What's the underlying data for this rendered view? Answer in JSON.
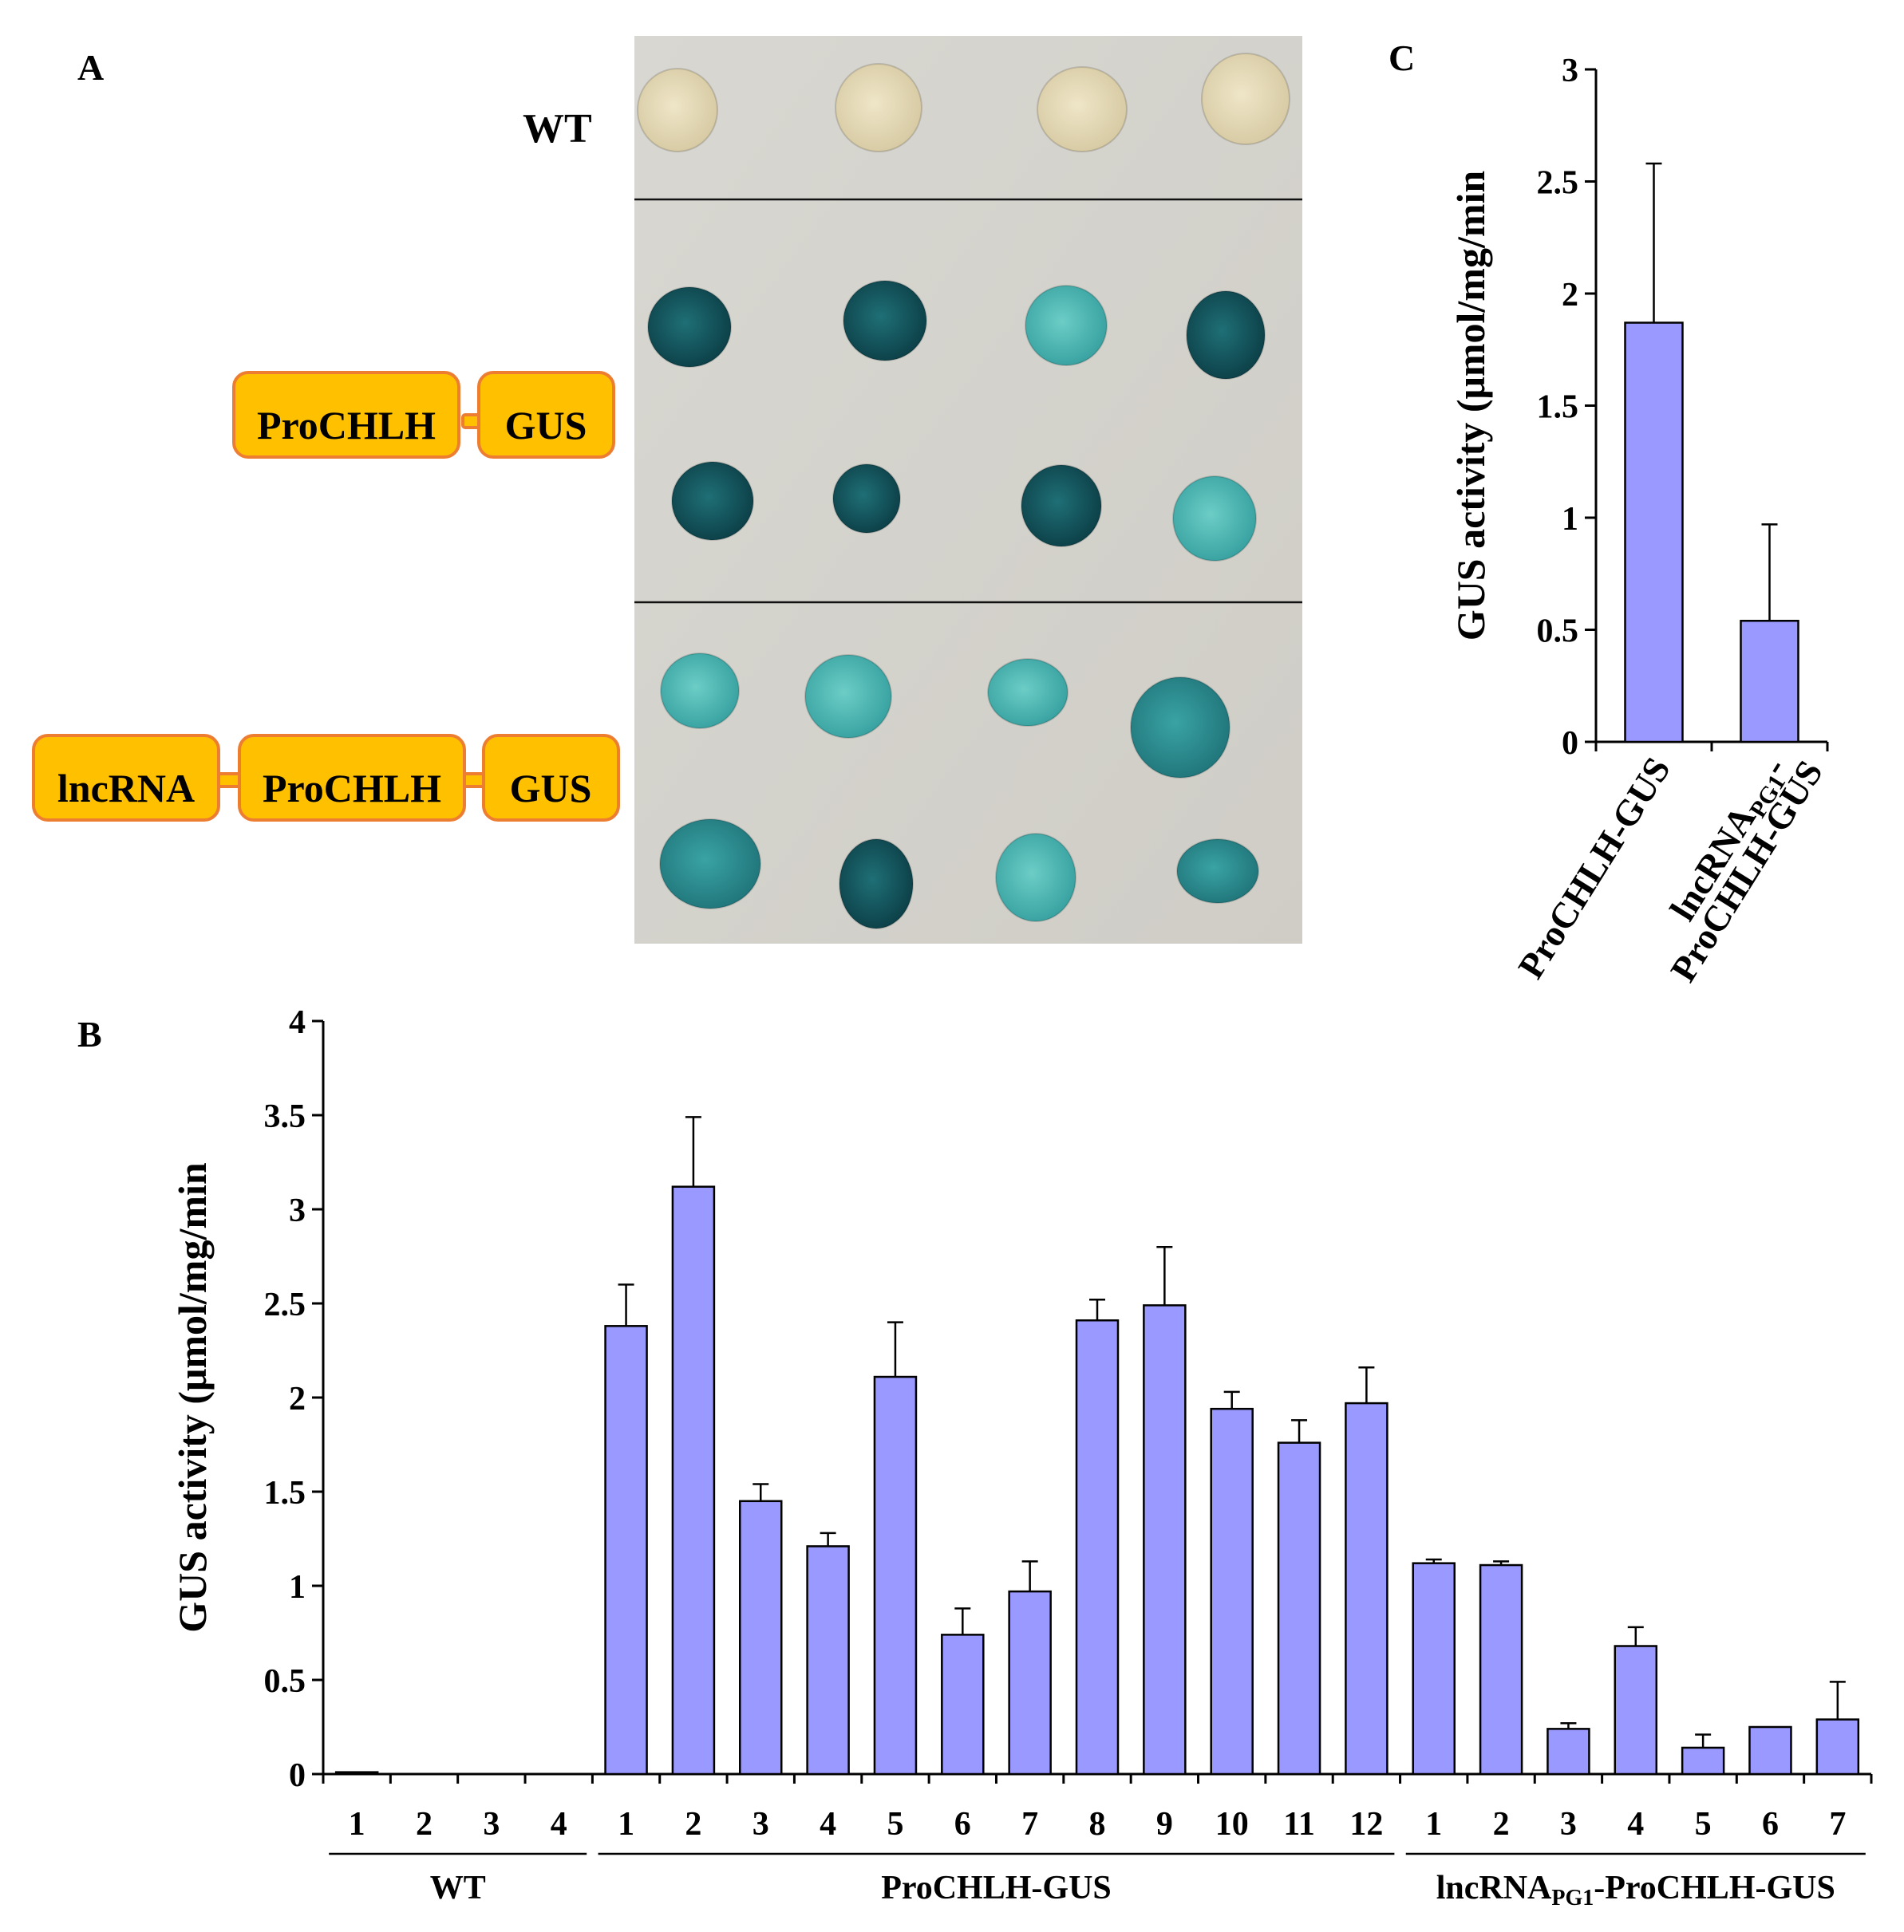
{
  "panels": {
    "a": "A",
    "b": "B",
    "c": "C"
  },
  "photo": {
    "wt_label": "WT",
    "rows": [
      "WT",
      "ProCHLH-GUS",
      "lncRNA-ProCHLH-GUS"
    ]
  },
  "constructs": {
    "c1": {
      "pro": "ProCHLH",
      "gus": "GUS"
    },
    "c2": {
      "lnc": "lncRNA",
      "pro": "ProCHLH",
      "gus": "GUS"
    }
  },
  "colors": {
    "bar_fill": "#9999ff",
    "box_fill": "#ffc000",
    "box_stroke": "#ed7d31"
  },
  "chart_data": [
    {
      "id": "B",
      "type": "bar",
      "ylabel": "GUS activity (μmol/mg/min",
      "ylim": [
        0,
        4
      ],
      "yticks": [
        "0",
        "0.5",
        "1",
        "1.5",
        "2",
        "2.5",
        "3",
        "3.5",
        "4"
      ],
      "categories": [
        "1",
        "2",
        "3",
        "4",
        "1",
        "2",
        "3",
        "4",
        "5",
        "6",
        "7",
        "8",
        "9",
        "10",
        "11",
        "12",
        "1",
        "2",
        "3",
        "4",
        "5",
        "6",
        "7"
      ],
      "values": [
        0.01,
        0,
        0,
        0,
        2.38,
        3.12,
        1.45,
        1.21,
        2.11,
        0.74,
        0.97,
        2.41,
        2.49,
        1.94,
        1.76,
        1.97,
        1.12,
        1.11,
        0.24,
        0.68,
        0.14,
        0.25,
        0.29
      ],
      "errors": [
        0,
        0,
        0,
        0,
        0.22,
        0.37,
        0.09,
        0.07,
        0.29,
        0.14,
        0.16,
        0.11,
        0.31,
        0.09,
        0.12,
        0.19,
        0.02,
        0.02,
        0.03,
        0.1,
        0.07,
        0,
        0.2
      ],
      "groups": [
        {
          "name": "WT",
          "sub": "",
          "name2": "",
          "start": 0,
          "end": 3
        },
        {
          "name": "ProCHLH-GUS",
          "sub": "",
          "name2": "",
          "start": 4,
          "end": 15
        },
        {
          "name": "lncRNA",
          "sub": "PG1",
          "name2": "-ProCHLH-GUS",
          "start": 16,
          "end": 22
        }
      ]
    },
    {
      "id": "C",
      "type": "bar",
      "ylabel": "GUS activity (μmol/mg/min",
      "ylim": [
        0,
        3
      ],
      "yticks": [
        "0",
        "0.5",
        "1",
        "1.5",
        "2",
        "2.5",
        "3"
      ],
      "categories": [
        "ProCHLH-GUS",
        "lncRNA"
      ],
      "category_sub": "PG1",
      "category_tail": "-",
      "category_line2": "ProCHLH-GUS",
      "values": [
        1.87,
        0.54
      ],
      "errors": [
        0.71,
        0.43
      ]
    }
  ]
}
